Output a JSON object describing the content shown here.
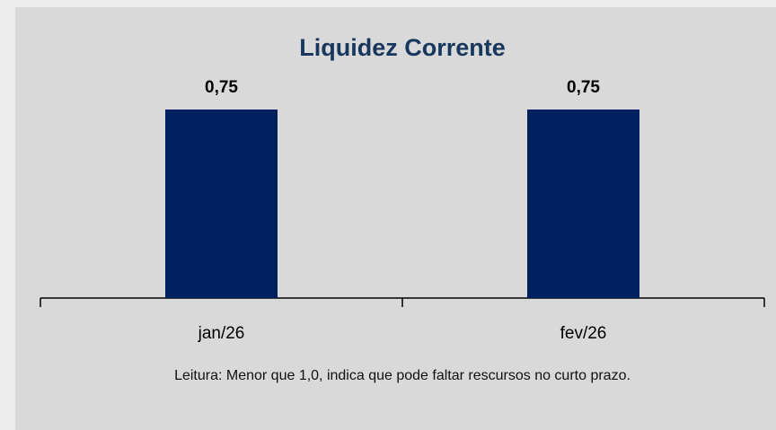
{
  "chart_data": {
    "type": "bar",
    "title": "Liquidez Corrente",
    "categories": [
      "jan/26",
      "fev/26"
    ],
    "values": [
      0.75,
      0.75
    ],
    "value_labels": [
      "0,75",
      "0,75"
    ],
    "color": "#002060",
    "annotation": "Leitura: Menor que 1,0, indica que pode faltar rescursos no curto prazo."
  }
}
